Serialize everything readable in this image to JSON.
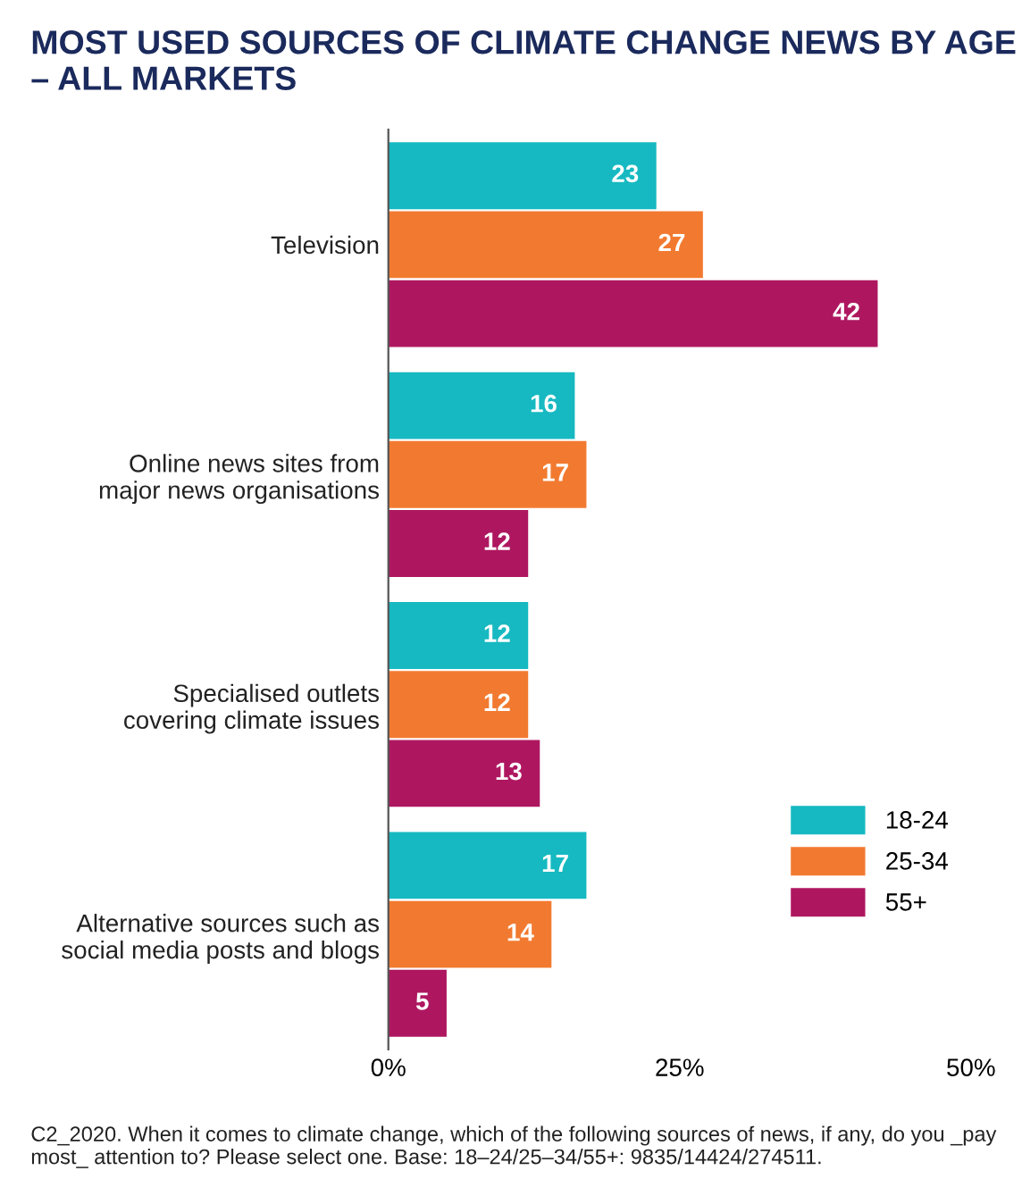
{
  "chart_data": {
    "type": "bar",
    "orientation": "horizontal",
    "title": "MOST USED SOURCES OF CLIMATE CHANGE NEWS BY AGE – ALL MARKETS",
    "categories": [
      "Television",
      "Online news sites from\nmajor news organisations",
      "Specialised outlets\ncovering climate issues",
      "Alternative sources such as\nsocial media posts and blogs"
    ],
    "series": [
      {
        "name": "18-24",
        "color": "#16b9c1",
        "values": [
          23,
          16,
          12,
          17
        ]
      },
      {
        "name": "25-34",
        "color": "#f27a30",
        "values": [
          27,
          17,
          12,
          14
        ]
      },
      {
        "name": "55+",
        "color": "#ae1760",
        "values": [
          42,
          12,
          13,
          5
        ]
      }
    ],
    "xlim": [
      0,
      50
    ],
    "xticks": [
      {
        "value": 0,
        "label": "0%"
      },
      {
        "value": 25,
        "label": "25%"
      },
      {
        "value": 50,
        "label": "50%"
      }
    ],
    "data_labels": true,
    "legend": "bottom right",
    "grid": false,
    "annotations": [
      "C2_2020. When it comes to climate change, which of the following sources of news, if any, do you _pay most_ attention to? Please select one. Base: 18–24/25–34/55+: 9835/14424/274511."
    ]
  }
}
